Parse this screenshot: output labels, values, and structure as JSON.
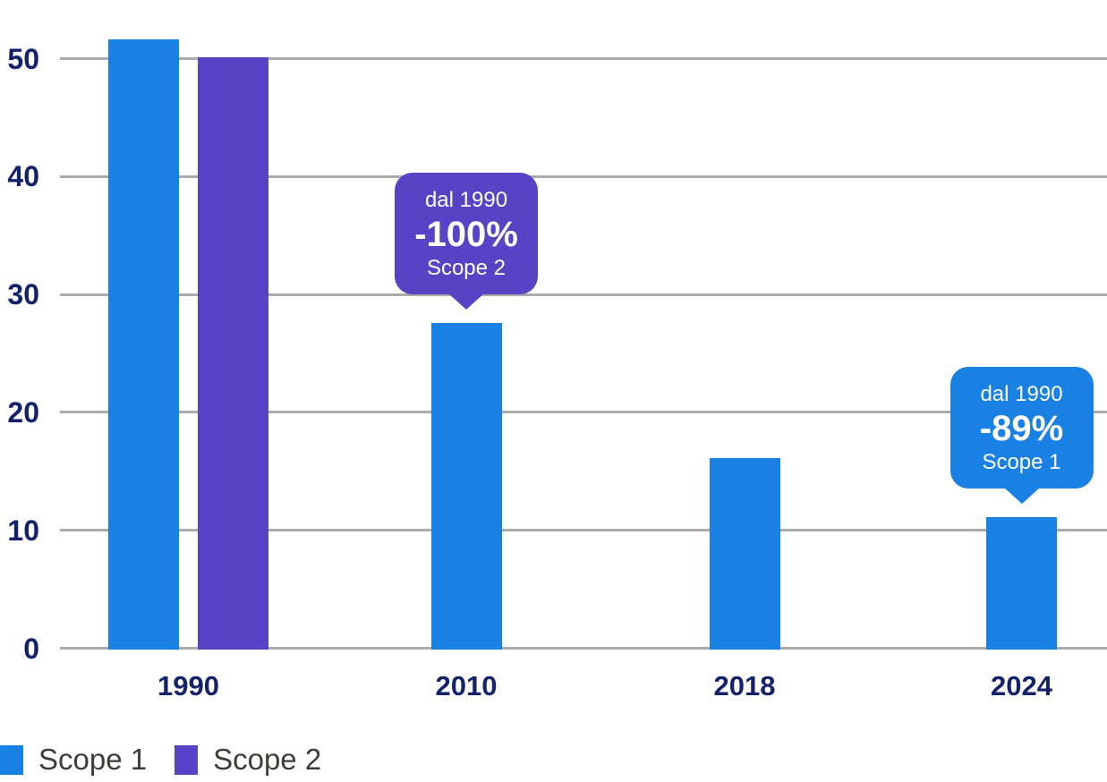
{
  "colors": {
    "scope1_blue": "#1981E3",
    "scope2_purple": "#5843C6",
    "axis_label_navy": "#14216B",
    "gridline_gray": "#ABABAB",
    "legend_text_gray": "#3D3D3C",
    "background": "#FFFFFF",
    "callout_text": "#FFFFFF"
  },
  "chart_data": {
    "type": "bar",
    "title": "",
    "xlabel": "",
    "ylabel": "",
    "categories": [
      "1990",
      "2010",
      "2018",
      "2024"
    ],
    "series": [
      {
        "name": "Scope 1",
        "color": "#1981E3",
        "values": [
          51.5,
          27.5,
          16,
          11
        ]
      },
      {
        "name": "Scope 2",
        "color": "#5843C6",
        "values": [
          50,
          0,
          0,
          0
        ]
      }
    ],
    "ylim": [
      0,
      55
    ],
    "yticks": [
      0,
      10,
      20,
      30,
      40,
      50
    ],
    "grid": true,
    "gridline_orientation": "horizontal",
    "legend_position": "bottom-left",
    "annotations": [
      {
        "category": "2010",
        "series": "Scope 2",
        "color": "#5843C6",
        "line_top": "dal 1990",
        "line_main": "-100%",
        "line_bottom": "Scope 2"
      },
      {
        "category": "2024",
        "series": "Scope 1",
        "color": "#1981E3",
        "line_top": "dal 1990",
        "line_main": "-89%",
        "line_bottom": "Scope 1"
      }
    ]
  }
}
